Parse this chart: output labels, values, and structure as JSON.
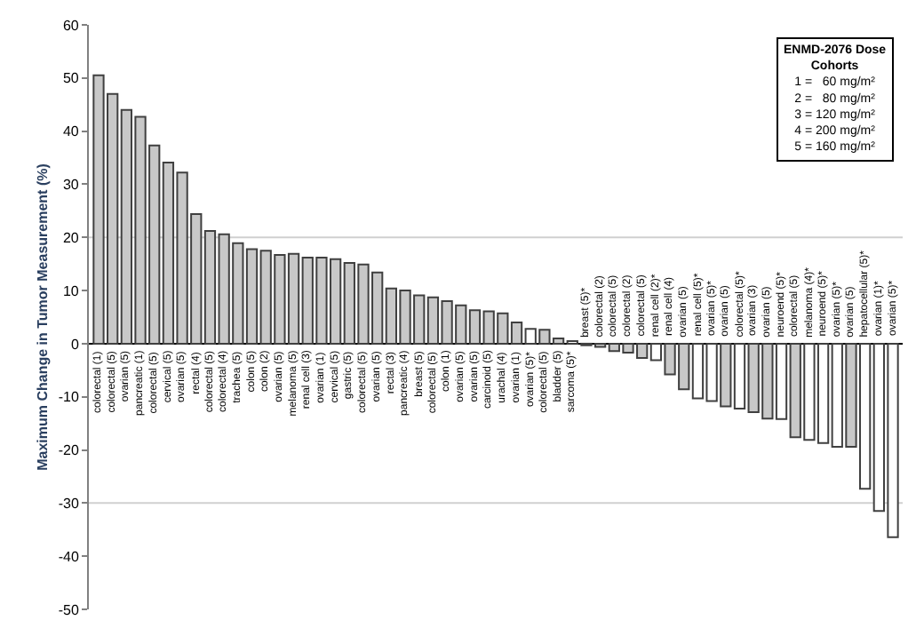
{
  "chart_data": {
    "type": "bar",
    "ylabel": "Maximum Change in Tumor Measurement (%)",
    "legend_title": "ENMD-2076 Dose Cohorts",
    "annotations": [
      "1 =   60 mg/m²",
      "2 =   80 mg/m²",
      "3 = 120 mg/m²",
      "4 = 200 mg/m²",
      "5 = 160 mg/m²"
    ],
    "categories": [
      "colorectal (1)",
      "colorectal (5)",
      "ovarian (5)",
      "pancreatic (1)",
      "colorectal (5)",
      "cervical (5)",
      "ovarian (5)",
      "rectal (4)",
      "colorectal (5)",
      "colorectal (4)",
      "trachea (5)",
      "colon (5)",
      "colon (2)",
      "ovarian (5)",
      "melanoma (5)",
      "renal cell (3)",
      "ovarian (1)",
      "cervical (5)",
      "gastric (5)",
      "colorectal (5)",
      "ovarian (5)",
      "rectal (3)",
      "pancreatic (4)",
      "breast (5)",
      "colorectal (5)",
      "colon (1)",
      "ovarian (5)",
      "ovarian (5)",
      "carcinoid (5)",
      "urachal (4)",
      "ovarian (1)",
      "ovarian (5)*",
      "colorectal (5)",
      "bladder (5)",
      "sarcoma (5)*",
      "breast (5)*",
      "colorectal (2)",
      "colorectal (5)",
      "colorectal (2)",
      "colorectal (5)",
      "renal cell (2)*",
      "renal cell (4)",
      "ovarian (5)",
      "renal cell (5)*",
      "ovarian (5)*",
      "ovarian (5)",
      "colorectal (5)*",
      "ovarian (3)",
      "ovarian (5)",
      "neuroend (5)*",
      "colorectal (5)",
      "melanoma (4)*",
      "neuroend (5)*",
      "ovarian (5)*",
      "ovarian (5)",
      "hepatocellular (5)*",
      "ovarian (1)*",
      "ovarian (5)*"
    ],
    "values": [
      50.5,
      47,
      44,
      42.7,
      37.3,
      34.1,
      32.2,
      24.4,
      21.2,
      20.6,
      18.9,
      17.8,
      17.5,
      16.7,
      16.9,
      16.2,
      16.2,
      15.9,
      15.2,
      14.9,
      13.4,
      10.4,
      10,
      9.1,
      8.7,
      8,
      7.2,
      6.3,
      6.1,
      5.7,
      4,
      2.8,
      2.6,
      1,
      0.5,
      -0.3,
      -0.6,
      -1.4,
      -1.7,
      -2.7,
      -3.1,
      -5.8,
      -8.6,
      -10.3,
      -10.8,
      -11.8,
      -12.2,
      -12.9,
      -14.1,
      -14.2,
      -17.6,
      -18.1,
      -18.7,
      -19.4,
      -19.4,
      -27.3,
      -31.5,
      -36.4
    ],
    "colors": [
      "#c8c8c8",
      "#c8c8c8",
      "#c8c8c8",
      "#c8c8c8",
      "#c8c8c8",
      "#c8c8c8",
      "#c8c8c8",
      "#c8c8c8",
      "#c8c8c8",
      "#c8c8c8",
      "#c8c8c8",
      "#c8c8c8",
      "#c8c8c8",
      "#c8c8c8",
      "#c8c8c8",
      "#c8c8c8",
      "#c8c8c8",
      "#c8c8c8",
      "#c8c8c8",
      "#c8c8c8",
      "#c8c8c8",
      "#c8c8c8",
      "#c8c8c8",
      "#c8c8c8",
      "#c8c8c8",
      "#c8c8c8",
      "#c8c8c8",
      "#c8c8c8",
      "#c8c8c8",
      "#c8c8c8",
      "#c8c8c8",
      "#ffffff",
      "#c8c8c8",
      "#c8c8c8",
      "#ffffff",
      "#ffffff",
      "#c8c8c8",
      "#c8c8c8",
      "#c8c8c8",
      "#c8c8c8",
      "#ffffff",
      "#c8c8c8",
      "#c8c8c8",
      "#ffffff",
      "#ffffff",
      "#c8c8c8",
      "#ffffff",
      "#c8c8c8",
      "#c8c8c8",
      "#ffffff",
      "#c8c8c8",
      "#ffffff",
      "#ffffff",
      "#ffffff",
      "#c8c8c8",
      "#ffffff",
      "#ffffff",
      "#ffffff"
    ],
    "ylim": [
      -50,
      60
    ],
    "yticks": [
      -50,
      -40,
      -30,
      -20,
      -10,
      0,
      10,
      20,
      30,
      40,
      50,
      60
    ],
    "ref_lines": [
      {
        "axis": "y",
        "value": 20,
        "color": "#d0d0d0"
      },
      {
        "axis": "y",
        "value": -30,
        "color": "#d0d0d0"
      }
    ],
    "tick_labels": "y",
    "grid": false,
    "legend": false
  }
}
